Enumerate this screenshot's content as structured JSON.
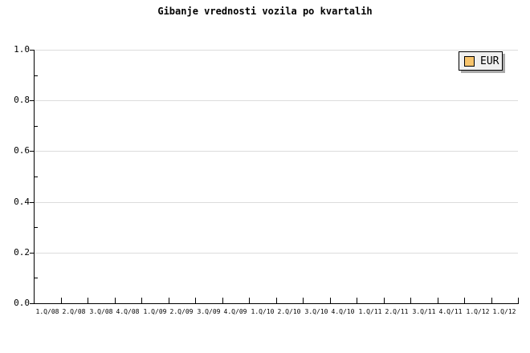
{
  "chart": {
    "title": "Gibanje vrednosti vozila po kvartalih",
    "legend": {
      "label": "EUR"
    }
  },
  "chart_data": {
    "type": "bar",
    "title": "Gibanje vrednosti vozila po kvartalih",
    "categories": [
      "1.Q/08",
      "2.Q/08",
      "3.Q/08",
      "4.Q/08",
      "1.Q/09",
      "2.Q/09",
      "3.Q/09",
      "4.Q/09",
      "1.Q/10",
      "2.Q/10",
      "3.Q/10",
      "4.Q/10",
      "1.Q/11",
      "2.Q/11",
      "3.Q/11",
      "4.Q/11",
      "1.Q/12",
      "1.Q/12"
    ],
    "series": [
      {
        "name": "EUR",
        "color": "#F7C46C",
        "values": []
      }
    ],
    "xlabel": "",
    "ylabel": "",
    "ylim": [
      0,
      1
    ],
    "ytick_values": [
      0,
      0.2,
      0.4,
      0.6,
      0.8,
      1.0
    ],
    "ytick_labels": [
      "0.0",
      "0.2",
      "0.4",
      "0.6",
      "0.8",
      "1.0"
    ],
    "minor_ytick_values": [
      0.1,
      0.3,
      0.5,
      0.7,
      0.9
    ],
    "grid": "horizontal-major",
    "legend_position": "top-right"
  },
  "colors": {
    "background": "#FFFFFF",
    "axis": "#000000",
    "gridline": "#DCDCDC",
    "legend_background": "#F0F0F0",
    "legend_border": "#000000",
    "legend_shadow": "#A9A9A9",
    "series_eur": "#F7C46C"
  }
}
